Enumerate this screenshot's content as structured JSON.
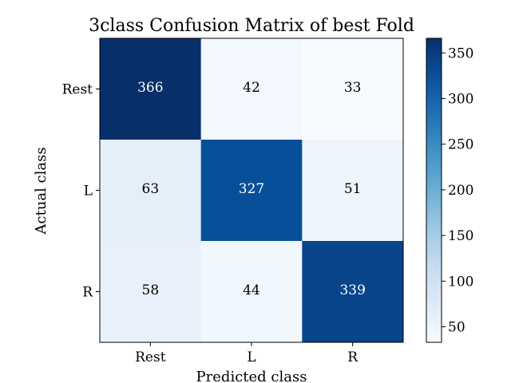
{
  "chart_data": {
    "type": "heatmap",
    "title": "3class Confusion Matrix of best Fold",
    "xlabel": "Predicted class",
    "ylabel": "Actual class",
    "x_categories": [
      "Rest",
      "L",
      "R"
    ],
    "y_categories": [
      "Rest",
      "L",
      "R"
    ],
    "values": [
      [
        366,
        42,
        33
      ],
      [
        63,
        327,
        51
      ],
      [
        58,
        44,
        339
      ]
    ],
    "colormap": "Blues",
    "color_range": [
      33,
      366
    ],
    "colorbar_ticks": [
      50,
      100,
      150,
      200,
      250,
      300,
      350
    ],
    "colors": {
      "low": "#f7fbff",
      "high": "#08306b",
      "text_dark": "#000000",
      "text_light": "#ffffff"
    }
  }
}
